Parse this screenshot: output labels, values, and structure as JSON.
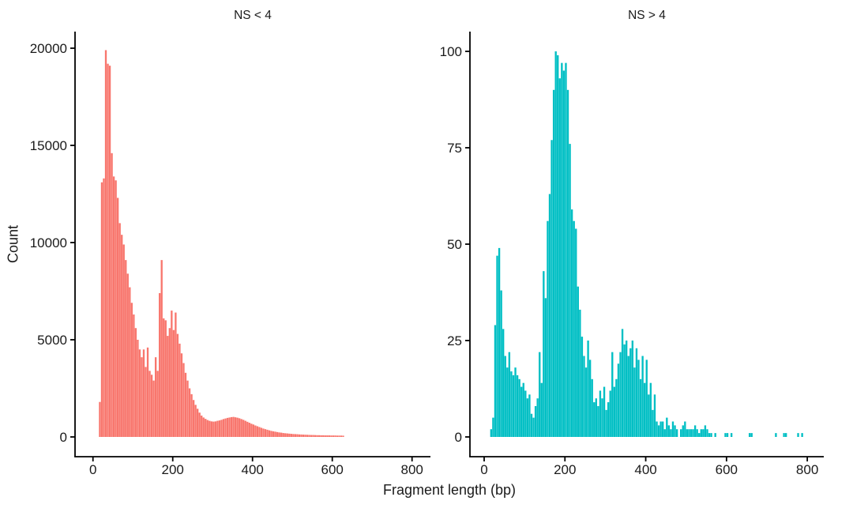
{
  "figure": {
    "background": "#ffffff",
    "text_color": "#1a1a1a",
    "axis_color": "#000000",
    "xlabel": "Fragment length (bp)",
    "ylabel": "Count"
  },
  "chart_data": [
    {
      "type": "bar",
      "subtype": "histogram",
      "title": "NS < 4",
      "color": "#F8766D",
      "xlabel": "Fragment length (bp)",
      "ylabel": "Count",
      "x_ticks": [
        0,
        200,
        400,
        600,
        800
      ],
      "y_ticks": [
        0,
        5000,
        10000,
        15000,
        20000
      ],
      "xlim": [
        0,
        850
      ],
      "ylim": [
        0,
        20900
      ],
      "grid": false,
      "legend": "none",
      "bin_start": 15,
      "bin_width": 5,
      "counts": [
        1800,
        13100,
        13300,
        19900,
        19200,
        19100,
        14600,
        13400,
        13200,
        12300,
        11000,
        10400,
        9900,
        9100,
        8400,
        7700,
        6900,
        6300,
        5600,
        5000,
        4500,
        4100,
        4500,
        3600,
        4600,
        3400,
        3200,
        2900,
        4100,
        3400,
        7400,
        9100,
        6100,
        6000,
        5200,
        5600,
        6500,
        5500,
        6400,
        5300,
        4800,
        4300,
        3800,
        3300,
        2900,
        2500,
        2200,
        1900,
        1650,
        1450,
        1250,
        1100,
        1000,
        930,
        870,
        830,
        800,
        790,
        800,
        830,
        850,
        880,
        920,
        950,
        980,
        1000,
        1020,
        1030,
        1010,
        990,
        960,
        920,
        880,
        830,
        780,
        730,
        680,
        640,
        590,
        550,
        510,
        470,
        430,
        400,
        370,
        340,
        310,
        290,
        270,
        250,
        230,
        220,
        200,
        190,
        180,
        170,
        160,
        150,
        145,
        140,
        130,
        125,
        120,
        115,
        110,
        105,
        100,
        100,
        95,
        90,
        90,
        85,
        85,
        80,
        80,
        80,
        75,
        75,
        75,
        70,
        70,
        70,
        65
      ]
    },
    {
      "type": "bar",
      "subtype": "histogram",
      "title": "NS > 4",
      "color": "#00BFC4",
      "xlabel": "Fragment length (bp)",
      "ylabel": "Count",
      "x_ticks": [
        0,
        200,
        400,
        600,
        800
      ],
      "y_ticks": [
        0,
        25,
        50,
        75,
        100
      ],
      "xlim": [
        0,
        850
      ],
      "ylim": [
        0,
        105
      ],
      "grid": false,
      "legend": "none",
      "bin_start": 15,
      "bin_width": 5,
      "counts": [
        2,
        5,
        29,
        47,
        49,
        38,
        28,
        21,
        18,
        22,
        17,
        16,
        18,
        16,
        15,
        13,
        14,
        12,
        10,
        11,
        6,
        5,
        8,
        10,
        22,
        14,
        43,
        36,
        56,
        63,
        77,
        90,
        100,
        99,
        93,
        97,
        95,
        97,
        90,
        76,
        59,
        56,
        54,
        39,
        33,
        26,
        21,
        18,
        25,
        20,
        15,
        9,
        10,
        8,
        12,
        10,
        13,
        7,
        9,
        12,
        22,
        13,
        15,
        19,
        22,
        28,
        24,
        25,
        21,
        23,
        25,
        18,
        23,
        20,
        15,
        21,
        14,
        20,
        11,
        14,
        7,
        11,
        4,
        3,
        4,
        4,
        2,
        5,
        3,
        2,
        4,
        3,
        2,
        0,
        2,
        3,
        4,
        2,
        2,
        2,
        2,
        3,
        2,
        1,
        2,
        2,
        3,
        2,
        1,
        1,
        0,
        1,
        0,
        0,
        0,
        0,
        1,
        1,
        0,
        1,
        0,
        0,
        0,
        0,
        0,
        0,
        0,
        0,
        1,
        1,
        0,
        0,
        0,
        0,
        0,
        0,
        0,
        0,
        0,
        0,
        0,
        1,
        0,
        0,
        0,
        1,
        1,
        0,
        0,
        0,
        0,
        0,
        1,
        0,
        1
      ]
    }
  ]
}
